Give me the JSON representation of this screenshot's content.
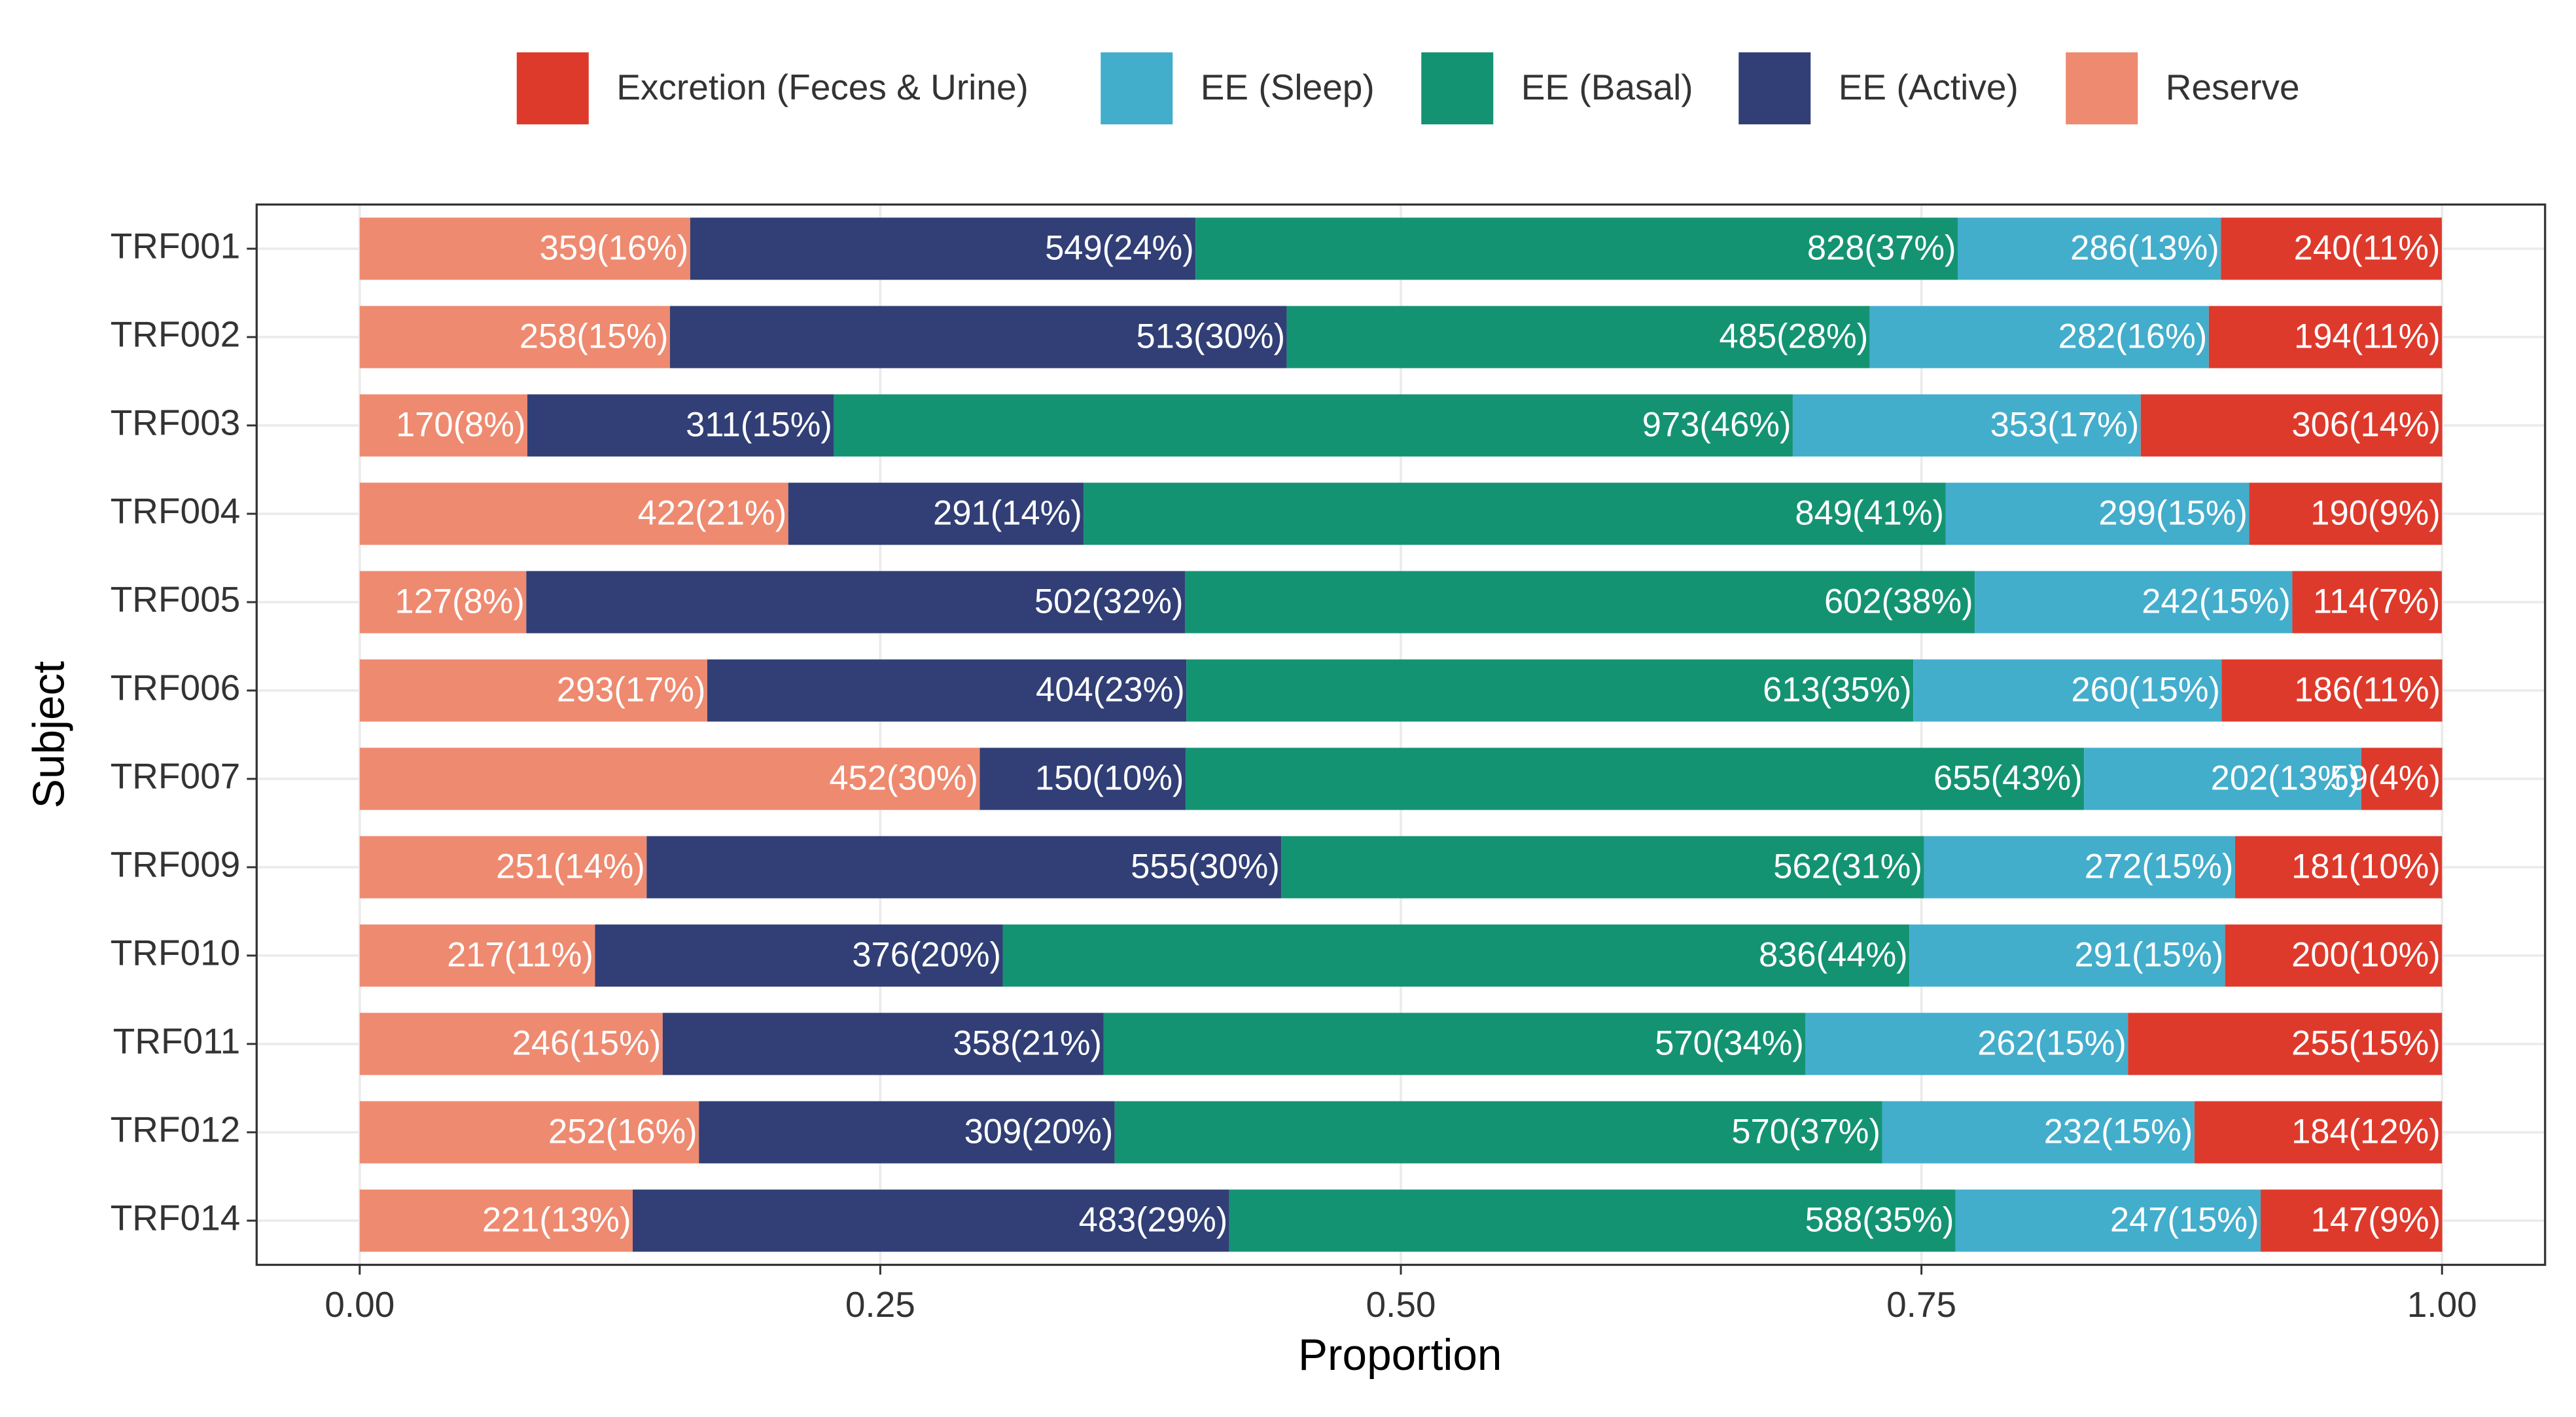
{
  "chart_data": {
    "type": "stacked_bar_horizontal",
    "xlabel": "Proportion",
    "ylabel": "Subject",
    "categories": [
      "TRF001",
      "TRF002",
      "TRF003",
      "TRF004",
      "TRF005",
      "TRF006",
      "TRF007",
      "TRF009",
      "TRF010",
      "TRF011",
      "TRF012",
      "TRF014"
    ],
    "series": [
      {
        "name": "Excretion (Feces & Urine)",
        "color": "#de3a2c",
        "values": [
          0.1061,
          0.112,
          0.1448,
          0.0926,
          0.0718,
          0.1059,
          0.0389,
          0.0994,
          0.1042,
          0.1508,
          0.1189,
          0.0872
        ],
        "value_labels": [
          "240(11%)",
          "194(11%)",
          "306(14%)",
          "190(9%)",
          "114(7%)",
          "186(11%)",
          "59(4%)",
          "181(10%)",
          "200(10%)",
          "255(15%)",
          "184(12%)",
          "147(9%)"
        ]
      },
      {
        "name": "EE (Sleep)",
        "color": "#43adcc",
        "values": [
          0.1264,
          0.1628,
          0.1671,
          0.1458,
          0.1525,
          0.1481,
          0.1331,
          0.1494,
          0.1516,
          0.1549,
          0.15,
          0.1465
        ],
        "value_labels": [
          "286(13%)",
          "282(16%)",
          "353(17%)",
          "299(15%)",
          "242(15%)",
          "260(15%)",
          "202(13%)",
          "272(15%)",
          "291(15%)",
          "262(15%)",
          "232(15%)",
          "247(15%)"
        ]
      },
      {
        "name": "EE (Basal)",
        "color": "#149373",
        "values": [
          0.366,
          0.28,
          0.4605,
          0.4139,
          0.3793,
          0.3491,
          0.4315,
          0.3086,
          0.4354,
          0.3371,
          0.3685,
          0.3488
        ],
        "value_labels": [
          "828(37%)",
          "485(28%)",
          "973(46%)",
          "849(41%)",
          "602(38%)",
          "613(35%)",
          "655(43%)",
          "562(31%)",
          "836(44%)",
          "570(34%)",
          "570(37%)",
          "588(35%)"
        ]
      },
      {
        "name": "EE (Active)",
        "color": "#313f76",
        "values": [
          0.2427,
          0.2962,
          0.1472,
          0.1419,
          0.3163,
          0.2301,
          0.0988,
          0.3048,
          0.1958,
          0.2117,
          0.1997,
          0.2865
        ],
        "value_labels": [
          "549(24%)",
          "513(30%)",
          "311(15%)",
          "291(14%)",
          "502(32%)",
          "404(23%)",
          "150(10%)",
          "555(30%)",
          "376(20%)",
          "358(21%)",
          "309(20%)",
          "483(29%)"
        ]
      },
      {
        "name": "Reserve",
        "color": "#ee8a70",
        "values": [
          0.1587,
          0.149,
          0.0805,
          0.2058,
          0.08,
          0.1669,
          0.2978,
          0.1378,
          0.113,
          0.1455,
          0.1629,
          0.1311
        ],
        "value_labels": [
          "359(16%)",
          "258(15%)",
          "170(8%)",
          "422(21%)",
          "127(8%)",
          "293(17%)",
          "452(30%)",
          "251(14%)",
          "217(11%)",
          "246(15%)",
          "252(16%)",
          "221(13%)"
        ]
      }
    ],
    "xlim": [
      0,
      1
    ],
    "xticks": [
      {
        "value": 0,
        "label": "0.00"
      },
      {
        "value": 0.25,
        "label": "0.25"
      },
      {
        "value": 0.5,
        "label": "0.50"
      },
      {
        "value": 0.75,
        "label": "0.75"
      },
      {
        "value": 1,
        "label": "1.00"
      }
    ],
    "grid": true,
    "legend": "top"
  }
}
